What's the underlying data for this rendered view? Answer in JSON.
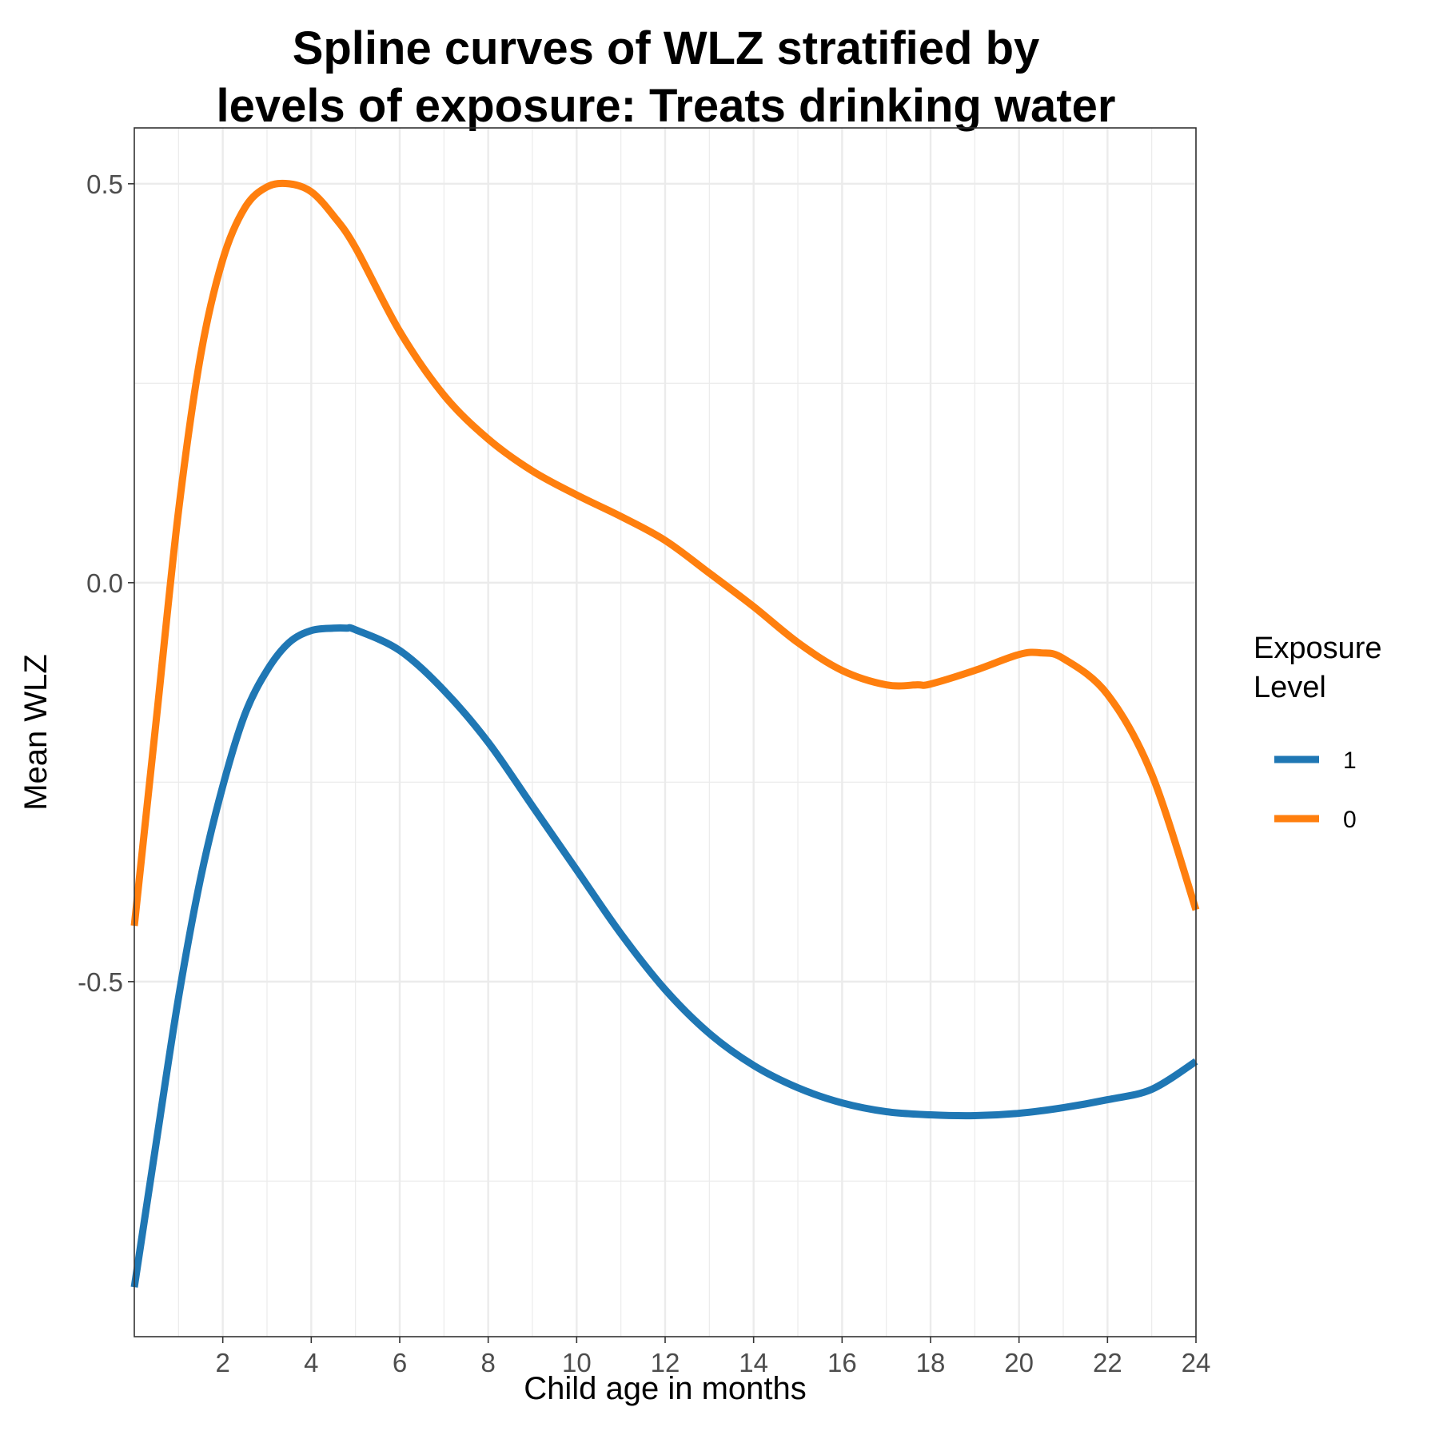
{
  "chart_data": {
    "type": "line",
    "title_lines": [
      "Spline curves of WLZ stratified by",
      "levels of exposure: Treats drinking water"
    ],
    "xlabel": "Child age in months",
    "ylabel": "Mean WLZ",
    "xlim": [
      0,
      24
    ],
    "ylim": [
      -0.945,
      0.57
    ],
    "x_ticks": [
      2,
      4,
      6,
      8,
      10,
      12,
      14,
      16,
      18,
      20,
      22,
      24
    ],
    "x_tick_labels": [
      "2",
      "4",
      "6",
      "8",
      "10",
      "12",
      "14",
      "16",
      "18",
      "20",
      "22",
      "24"
    ],
    "y_ticks": [
      0.5,
      0.0,
      -0.5
    ],
    "y_tick_labels": [
      "0.5",
      "0.0",
      "-0.5"
    ],
    "grid": true,
    "legend": {
      "title_lines": [
        "Exposure",
        "Level"
      ],
      "placement": "right"
    },
    "series": [
      {
        "name": "1",
        "color": "#1f77b4",
        "x": [
          0.0,
          0.5,
          1.0,
          1.5,
          2.0,
          2.5,
          3.0,
          3.5,
          4.0,
          4.5,
          4.8,
          5.0,
          6.0,
          7.0,
          8.0,
          9.0,
          10.0,
          11.0,
          12.0,
          13.0,
          14.0,
          15.0,
          16.0,
          17.0,
          18.0,
          19.0,
          20.0,
          21.0,
          22.0,
          23.0,
          24.0
        ],
        "y": [
          -0.883,
          -0.7,
          -0.52,
          -0.37,
          -0.255,
          -0.165,
          -0.11,
          -0.075,
          -0.06,
          -0.057,
          -0.057,
          -0.059,
          -0.085,
          -0.135,
          -0.2,
          -0.28,
          -0.36,
          -0.44,
          -0.51,
          -0.565,
          -0.605,
          -0.633,
          -0.652,
          -0.663,
          -0.667,
          -0.668,
          -0.665,
          -0.658,
          -0.648,
          -0.635,
          -0.6
        ]
      },
      {
        "name": "0",
        "color": "#ff7f0e",
        "x": [
          0.0,
          0.5,
          1.0,
          1.5,
          2.0,
          2.5,
          3.0,
          3.5,
          4.0,
          4.5,
          5.0,
          6.0,
          7.0,
          8.0,
          9.0,
          10.0,
          11.0,
          12.0,
          13.0,
          14.0,
          15.0,
          16.0,
          17.0,
          17.7,
          18.0,
          19.0,
          20.0,
          20.5,
          21.0,
          22.0,
          23.0,
          24.0
        ],
        "y": [
          -0.43,
          -0.17,
          0.09,
          0.285,
          0.405,
          0.47,
          0.496,
          0.5,
          0.49,
          0.46,
          0.42,
          0.315,
          0.235,
          0.18,
          0.14,
          0.11,
          0.083,
          0.053,
          0.012,
          -0.03,
          -0.075,
          -0.11,
          -0.128,
          -0.128,
          -0.127,
          -0.11,
          -0.09,
          -0.088,
          -0.095,
          -0.14,
          -0.24,
          -0.41
        ]
      }
    ]
  }
}
